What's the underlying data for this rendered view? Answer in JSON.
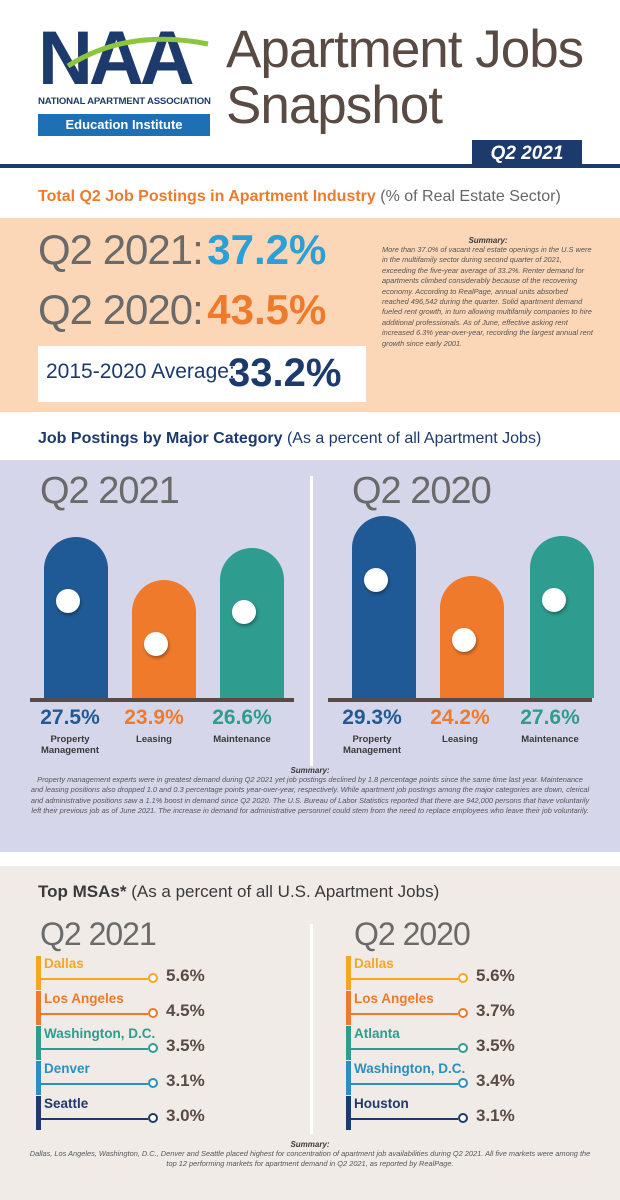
{
  "header": {
    "logo_letters": "NAA",
    "logo_name": "NATIONAL APARTMENT ASSOCIATION",
    "logo_edu": "Education Institute",
    "title_line1": "Apartment Jobs",
    "title_line2": "Snapshot",
    "quarter_badge": "Q2 2021"
  },
  "total_postings": {
    "heading_bold": "Total Q2 Job Postings in Apartment Industry",
    "heading_sub": "(% of Real Estate Sector)",
    "q2_2021_label": "Q2 2021:",
    "q2_2021_value": "37.2%",
    "q2_2020_label": "Q2 2020:",
    "q2_2020_value": "43.5%",
    "avg_label": "2015-2020 Average:",
    "avg_value": "33.2%",
    "summary_title": "Summary:",
    "summary_text": "More than 37.0% of vacant real estate openings in the U.S were in the multifamily sector during second quarter of 2021, exceeding the five-year average of 33.2%. Renter demand for apartments climbed considerably because of the recovering economy. According to RealPage, annual units absorbed reached 496,542 during the quarter. Solid apartment demand fueled rent growth, in turn allowing multifamily companies to hire additional professionals. As of June, effective asking rent increased 6.3% year-over-year, recording the largest annual rent growth since early 2001."
  },
  "major_category": {
    "heading_bold": "Job Postings by Major Category",
    "heading_sub": "(As a percent of all Apartment Jobs)",
    "summary_title": "Summary:",
    "summary_text": "Property management experts were in greatest demand during Q2 2021 yet job postings declined by 1.8 percentage points since the same time last year. Maintenance and leasing positions also dropped 1.0 and 0.3 percentage points year-over-year, respectively. While apartment job postings among the major categories are down, clerical and administrative positions saw a 1.1% boost in demand since Q2 2020. The U.S. Bureau of Labor Statistics reported that there are 942,000 persons that have voluntarily left their previous job as of June 2021. The increase in demand for administrative personnel could stem from the need to replace employees who leave their job voluntarily."
  },
  "chart_data": [
    {
      "type": "bar",
      "title": "Q2 2021",
      "categories": [
        "Property Management",
        "Leasing",
        "Maintenance"
      ],
      "values": [
        27.5,
        23.9,
        26.6
      ],
      "labels": [
        "27.5%",
        "23.9%",
        "26.6%"
      ],
      "colors": [
        "#1f5a96",
        "#f07a2b",
        "#2e9c8f"
      ]
    },
    {
      "type": "bar",
      "title": "Q2 2020",
      "categories": [
        "Property Management",
        "Leasing",
        "Maintenance"
      ],
      "values": [
        29.3,
        24.2,
        27.6
      ],
      "labels": [
        "29.3%",
        "24.2%",
        "27.6%"
      ],
      "colors": [
        "#1f5a96",
        "#f07a2b",
        "#2e9c8f"
      ]
    }
  ],
  "category_labels": {
    "pm_line1": "Property",
    "pm_line2": "Management",
    "leasing": "Leasing",
    "maintenance": "Maintenance"
  },
  "top_msas": {
    "heading_bold": "Top MSAs*",
    "heading_sub": "(As a percent of all U.S. Apartment Jobs)",
    "q2_2021": {
      "title": "Q2 2021",
      "items": [
        {
          "name": "Dallas",
          "value": "5.6%",
          "color": "#f5a623"
        },
        {
          "name": "Los Angeles",
          "value": "4.5%",
          "color": "#f07a2b"
        },
        {
          "name": "Washington, D.C.",
          "value": "3.5%",
          "color": "#2e9c8f"
        },
        {
          "name": "Denver",
          "value": "3.1%",
          "color": "#2a8fc2"
        },
        {
          "name": "Seattle",
          "value": "3.0%",
          "color": "#1d3a6d"
        }
      ]
    },
    "q2_2020": {
      "title": "Q2 2020",
      "items": [
        {
          "name": "Dallas",
          "value": "5.6%",
          "color": "#f5a623"
        },
        {
          "name": "Los Angeles",
          "value": "3.7%",
          "color": "#f07a2b"
        },
        {
          "name": "Atlanta",
          "value": "3.5%",
          "color": "#2e9c8f"
        },
        {
          "name": "Washington, D.C.",
          "value": "3.4%",
          "color": "#2a8fc2"
        },
        {
          "name": "Houston",
          "value": "3.1%",
          "color": "#1d3a6d"
        }
      ]
    },
    "summary_title": "Summary:",
    "summary_text": "Dallas, Los Angeles, Washington, D.C., Denver and Seattle placed highest for concentration of apartment job availabilities during Q2 2021. All five markets were among the top 12 performing markets for apartment demand in Q2 2021, as reported by RealPage."
  }
}
